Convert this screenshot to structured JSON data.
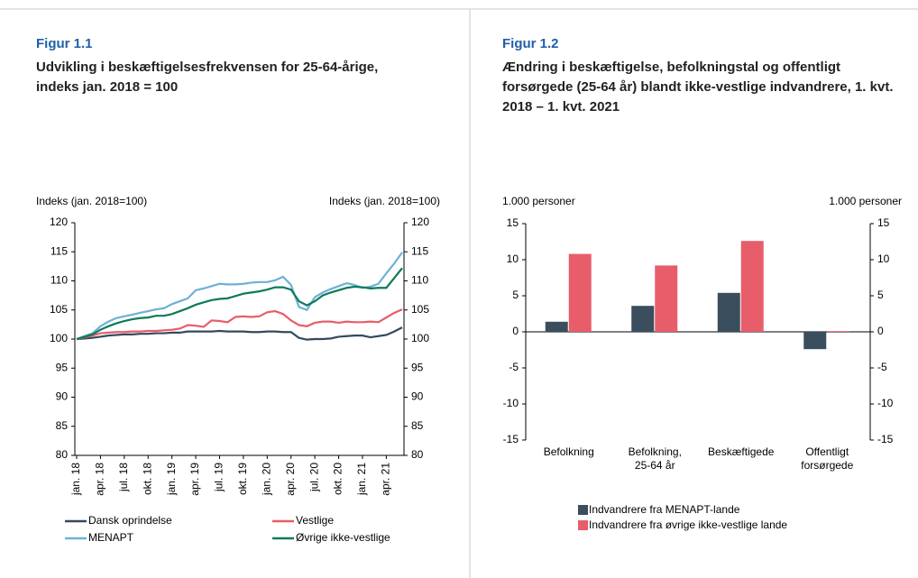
{
  "chart_data": [
    {
      "type": "line",
      "figure_label": "Figur 1.1",
      "title": "Udvikling i beskæftigelsesfrekvensen for 25-64-årige, indeks jan. 2018 = 100",
      "y_label": "Indeks (jan. 2018=100)",
      "y2_label": "Indeks (jan. 2018=100)",
      "categories": [
        "jan. 18",
        null,
        null,
        "apr. 18",
        null,
        null,
        "jul. 18",
        null,
        null,
        "okt. 18",
        null,
        null,
        "jan. 19",
        null,
        null,
        "apr. 19",
        null,
        null,
        "jul. 19",
        null,
        null,
        "okt. 19",
        null,
        null,
        "jan. 20",
        null,
        null,
        "apr. 20",
        null,
        null,
        "jul. 20",
        null,
        null,
        "okt. 20",
        null,
        null,
        "jan. 21",
        null,
        null,
        "apr. 21",
        null,
        null
      ],
      "series": [
        {
          "name": "Dansk oprindelse",
          "color": "#34495e",
          "values": [
            100,
            100.1,
            100.2,
            100.4,
            100.6,
            100.7,
            100.8,
            100.8,
            100.9,
            100.9,
            101,
            101,
            101.1,
            101.1,
            101.3,
            101.3,
            101.3,
            101.3,
            101.4,
            101.3,
            101.3,
            101.3,
            101.2,
            101.2,
            101.3,
            101.3,
            101.2,
            101.2,
            100.2,
            99.9,
            100,
            100,
            100.1,
            100.4,
            100.5,
            100.6,
            100.6,
            100.3,
            100.5,
            100.7,
            101.3,
            102
          ]
        },
        {
          "name": "Vestlige",
          "color": "#e85d6a",
          "values": [
            100,
            100.3,
            100.6,
            101,
            101.1,
            101.2,
            101.2,
            101.3,
            101.3,
            101.4,
            101.4,
            101.5,
            101.6,
            101.8,
            102.4,
            102.3,
            102.1,
            103.2,
            103.1,
            102.9,
            103.8,
            103.9,
            103.8,
            103.9,
            104.6,
            104.8,
            104.3,
            103.2,
            102.4,
            102.2,
            102.8,
            103,
            103,
            102.8,
            103,
            102.9,
            102.9,
            103,
            102.9,
            103.7,
            104.5,
            105.1
          ]
        },
        {
          "name": "MENAPT",
          "color": "#6fb0d6",
          "values": [
            100,
            100.5,
            101,
            102.2,
            103,
            103.6,
            103.9,
            104.2,
            104.5,
            104.8,
            105.1,
            105.3,
            106,
            106.5,
            107,
            108.4,
            108.7,
            109.1,
            109.5,
            109.4,
            109.4,
            109.5,
            109.7,
            109.8,
            109.8,
            110.1,
            110.7,
            109.3,
            105.5,
            105,
            107.2,
            108,
            108.6,
            109.1,
            109.6,
            109.3,
            108.8,
            109,
            109.5,
            111.3,
            113,
            114.9
          ]
        },
        {
          "name": "Øvrige ikke-vestlige",
          "color": "#0b7a5a",
          "values": [
            100,
            100.4,
            100.8,
            101.6,
            102.2,
            102.7,
            103.1,
            103.4,
            103.6,
            103.7,
            104,
            104,
            104.3,
            104.8,
            105.3,
            105.9,
            106.3,
            106.7,
            106.9,
            107,
            107.4,
            107.8,
            108,
            108.2,
            108.5,
            108.9,
            108.9,
            108.5,
            106.5,
            105.8,
            106.5,
            107.5,
            108,
            108.4,
            108.8,
            109,
            108.9,
            108.7,
            108.8,
            108.8,
            110.5,
            112.2
          ]
        }
      ],
      "ylim": [
        80,
        120
      ],
      "yticks": [
        80,
        85,
        90,
        95,
        100,
        105,
        110,
        115,
        120
      ],
      "y2lim": [
        80,
        120
      ],
      "y2ticks": [
        80,
        85,
        90,
        95,
        100,
        105,
        110,
        115,
        120
      ]
    },
    {
      "type": "bar",
      "figure_label": "Figur 1.2",
      "title": "Ændring i beskæftigelse, befolkningstal og offentligt forsørgede (25-64 år) blandt ikke-vestlige indvandrere, 1. kvt. 2018 – 1. kvt. 2021",
      "y_label": "1.000 personer",
      "y2_label": "1.000 personer",
      "categories": [
        "Befolkning",
        "Befolkning,\n25-64 år",
        "Beskæftigede",
        "Offentligt\nforsørgede"
      ],
      "series": [
        {
          "name": "Indvandrere fra MENAPT-lande",
          "color": "#3a4e5e",
          "values": [
            1.4,
            3.6,
            5.4,
            -2.4
          ]
        },
        {
          "name": "Indvandrere fra øvrige ikke-vestlige lande",
          "color": "#e85d6a",
          "values": [
            10.8,
            9.2,
            12.6,
            0.1
          ]
        }
      ],
      "ylim": [
        -15,
        15
      ],
      "yticks": [
        -15,
        -10,
        -5,
        0,
        5,
        10,
        15
      ],
      "y2lim": [
        -15,
        15
      ],
      "y2ticks": [
        -15,
        -10,
        -5,
        0,
        5,
        10,
        15
      ]
    }
  ]
}
